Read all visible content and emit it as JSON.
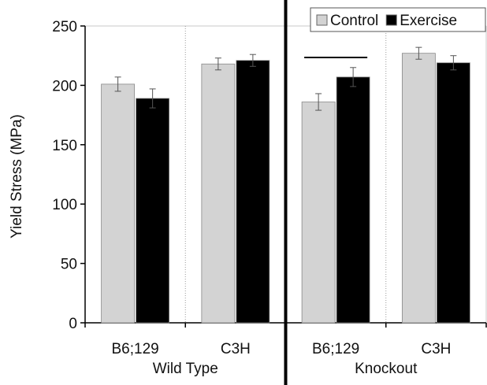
{
  "chart_data": {
    "type": "bar",
    "title": "",
    "ylabel": "Yield Stress (MPa)",
    "xlabel": "",
    "ylim": [
      0,
      250
    ],
    "yticks": [
      0,
      50,
      100,
      150,
      200,
      250
    ],
    "categories": [
      "B6;129",
      "C3H",
      "B6;129",
      "C3H"
    ],
    "groups": [
      {
        "label": "Wild Type",
        "categories": [
          0,
          1
        ]
      },
      {
        "label": "Knockout",
        "categories": [
          2,
          3
        ]
      }
    ],
    "series": [
      {
        "name": "Control",
        "color": "#d3d3d3",
        "values": [
          201,
          218,
          186,
          227
        ],
        "errors": [
          6,
          5,
          7,
          5
        ]
      },
      {
        "name": "Exercise",
        "color": "#000000",
        "values": [
          189,
          221,
          207,
          219
        ],
        "errors": [
          8,
          5,
          8,
          6
        ]
      }
    ],
    "annotations": [
      {
        "type": "significance-bar",
        "category": 2
      }
    ],
    "legend": {
      "position": "top-right"
    },
    "grid": false
  }
}
